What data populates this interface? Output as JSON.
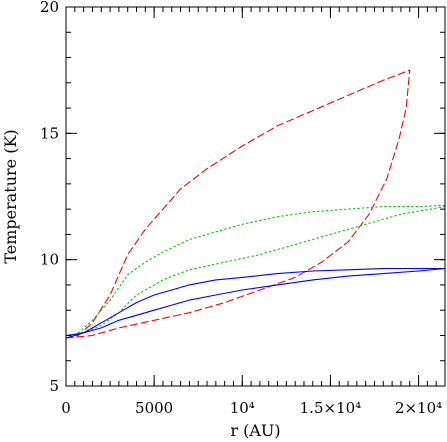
{
  "chart_data": {
    "type": "line",
    "title": "",
    "xlabel": "r (AU)",
    "ylabel": "Temperature (K)",
    "xlim": [
      0,
      21500
    ],
    "ylim": [
      5,
      20
    ],
    "x_ticks": [
      {
        "value": 0,
        "label": "0"
      },
      {
        "value": 5000,
        "label": "5000"
      },
      {
        "value": 10000,
        "label": "10⁴"
      },
      {
        "value": 15000,
        "label": "1.5×10⁴"
      },
      {
        "value": 20000,
        "label": "2×10⁴"
      }
    ],
    "y_ticks": [
      {
        "value": 5,
        "label": "5"
      },
      {
        "value": 10,
        "label": "10"
      },
      {
        "value": 15,
        "label": "15"
      },
      {
        "value": 20,
        "label": "20"
      }
    ],
    "x_minor_step": 500,
    "y_minor_step": 1,
    "grid": false,
    "series": [
      {
        "color": "#ff0000",
        "dash": "dashed",
        "points": [
          [
            0,
            6.9
          ],
          [
            700,
            7.0
          ],
          [
            1500,
            7.5
          ],
          [
            2500,
            8.6
          ],
          [
            3500,
            10.2
          ],
          [
            4500,
            11.2
          ],
          [
            5500,
            12.0
          ],
          [
            6500,
            12.8
          ],
          [
            8000,
            13.6
          ],
          [
            10000,
            14.5
          ],
          [
            12000,
            15.3
          ],
          [
            14000,
            15.9
          ],
          [
            16000,
            16.5
          ],
          [
            18000,
            17.1
          ],
          [
            19500,
            17.5
          ]
        ]
      },
      {
        "color": "#ff0000",
        "dash": "dashed",
        "points": [
          [
            0,
            6.9
          ],
          [
            1500,
            7.0
          ],
          [
            3000,
            7.3
          ],
          [
            5000,
            7.6
          ],
          [
            7000,
            7.9
          ],
          [
            9000,
            8.3
          ],
          [
            11000,
            8.8
          ],
          [
            13000,
            9.3
          ],
          [
            14500,
            9.9
          ],
          [
            16000,
            10.7
          ],
          [
            17200,
            11.8
          ],
          [
            18200,
            13.2
          ],
          [
            18900,
            14.8
          ],
          [
            19300,
            16.0
          ],
          [
            19500,
            17.5
          ]
        ]
      },
      {
        "color": "#00cc00",
        "dash": "dotted",
        "points": [
          [
            0,
            6.9
          ],
          [
            700,
            7.1
          ],
          [
            1500,
            7.6
          ],
          [
            2500,
            8.4
          ],
          [
            3500,
            9.4
          ],
          [
            4500,
            9.9
          ],
          [
            5500,
            10.3
          ],
          [
            7000,
            10.8
          ],
          [
            8500,
            11.1
          ],
          [
            10000,
            11.4
          ],
          [
            12000,
            11.7
          ],
          [
            14000,
            11.9
          ],
          [
            16000,
            12.0
          ],
          [
            18000,
            12.1
          ],
          [
            20000,
            12.1
          ],
          [
            21500,
            12.15
          ]
        ]
      },
      {
        "color": "#00cc00",
        "dash": "dotted",
        "points": [
          [
            0,
            6.9
          ],
          [
            1000,
            7.1
          ],
          [
            2000,
            7.4
          ],
          [
            3000,
            7.9
          ],
          [
            4000,
            8.6
          ],
          [
            5500,
            9.2
          ],
          [
            7000,
            9.6
          ],
          [
            9000,
            9.9
          ],
          [
            11000,
            10.2
          ],
          [
            13000,
            10.6
          ],
          [
            15000,
            11.0
          ],
          [
            17000,
            11.4
          ],
          [
            19000,
            11.8
          ],
          [
            21500,
            12.1
          ]
        ]
      },
      {
        "color": "#0000ff",
        "dash": "solid",
        "points": [
          [
            0,
            6.9
          ],
          [
            1000,
            7.1
          ],
          [
            2000,
            7.5
          ],
          [
            3000,
            7.9
          ],
          [
            4000,
            8.3
          ],
          [
            5000,
            8.6
          ],
          [
            6000,
            8.8
          ],
          [
            7000,
            9.0
          ],
          [
            8500,
            9.2
          ],
          [
            10000,
            9.3
          ],
          [
            12000,
            9.45
          ],
          [
            14000,
            9.55
          ],
          [
            16000,
            9.6
          ],
          [
            18000,
            9.65
          ],
          [
            20000,
            9.65
          ],
          [
            21500,
            9.65
          ]
        ]
      },
      {
        "color": "#0000ff",
        "dash": "solid",
        "points": [
          [
            0,
            7.0
          ],
          [
            1000,
            7.1
          ],
          [
            2000,
            7.3
          ],
          [
            3000,
            7.6
          ],
          [
            4000,
            7.8
          ],
          [
            5000,
            8.0
          ],
          [
            6000,
            8.2
          ],
          [
            7000,
            8.4
          ],
          [
            8500,
            8.6
          ],
          [
            10000,
            8.8
          ],
          [
            12000,
            9.0
          ],
          [
            14000,
            9.2
          ],
          [
            16000,
            9.35
          ],
          [
            18000,
            9.45
          ],
          [
            20000,
            9.55
          ],
          [
            21500,
            9.65
          ]
        ]
      }
    ]
  }
}
